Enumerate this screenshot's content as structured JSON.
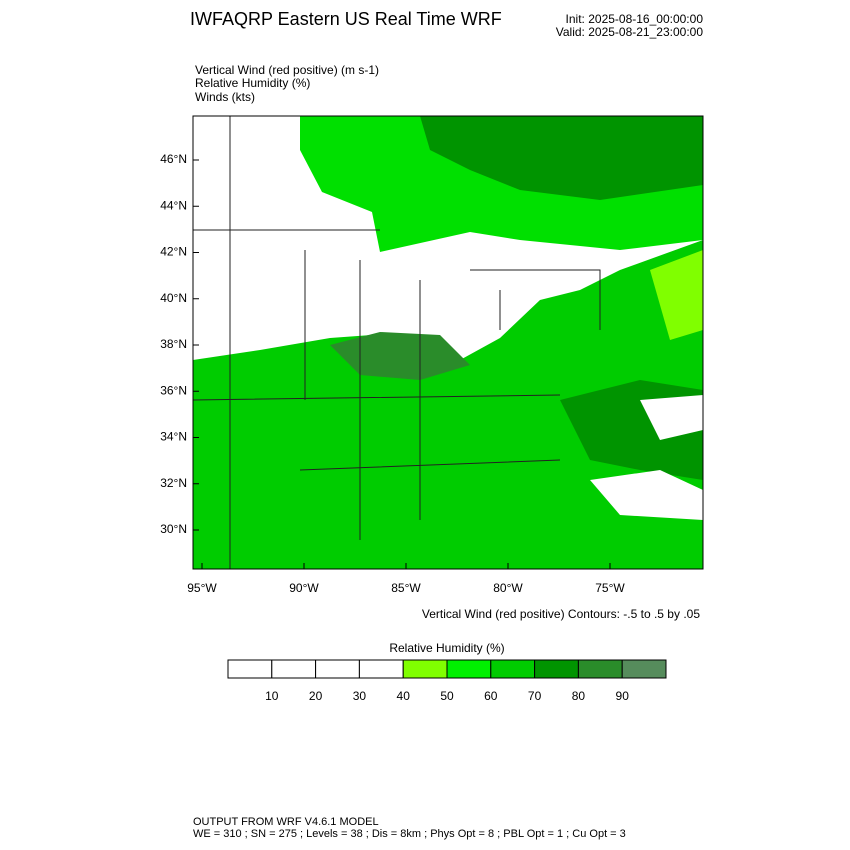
{
  "header": {
    "title": "IWFAQRP Eastern US Real Time WRF",
    "init": "Init: 2025-08-16_00:00:00",
    "valid": "Valid: 2025-08-21_23:00:00"
  },
  "fields": [
    "Vertical Wind (red positive)   (m s-1)",
    "Relative Humidity   (%)",
    "Winds   (kts)"
  ],
  "map": {
    "lat_labels": [
      "46°N",
      "44°N",
      "42°N",
      "40°N",
      "38°N",
      "36°N",
      "34°N",
      "32°N",
      "30°N"
    ],
    "lon_labels": [
      "95°W",
      "90°W",
      "85°W",
      "80°W",
      "75°W"
    ],
    "contour_note": "Vertical Wind (red positive) Contours: -.5 to .5 by .05"
  },
  "colorbar": {
    "title": "Relative Humidity  (%)",
    "labels": [
      "10",
      "20",
      "30",
      "40",
      "50",
      "60",
      "70",
      "80",
      "90"
    ],
    "colors": [
      "#ffffff",
      "#ffffff",
      "#ffffff",
      "#ffffff",
      "#80ff00",
      "#00f000",
      "#00cc00",
      "#009400",
      "#2a8c2a",
      "#568c5c"
    ]
  },
  "footer": [
    "OUTPUT FROM WRF V4.6.1 MODEL",
    "WE = 310 ; SN = 275 ; Levels = 38 ; Dis = 8km ; Phys Opt = 8 ; PBL Opt = 1 ; Cu Opt = 3"
  ]
}
